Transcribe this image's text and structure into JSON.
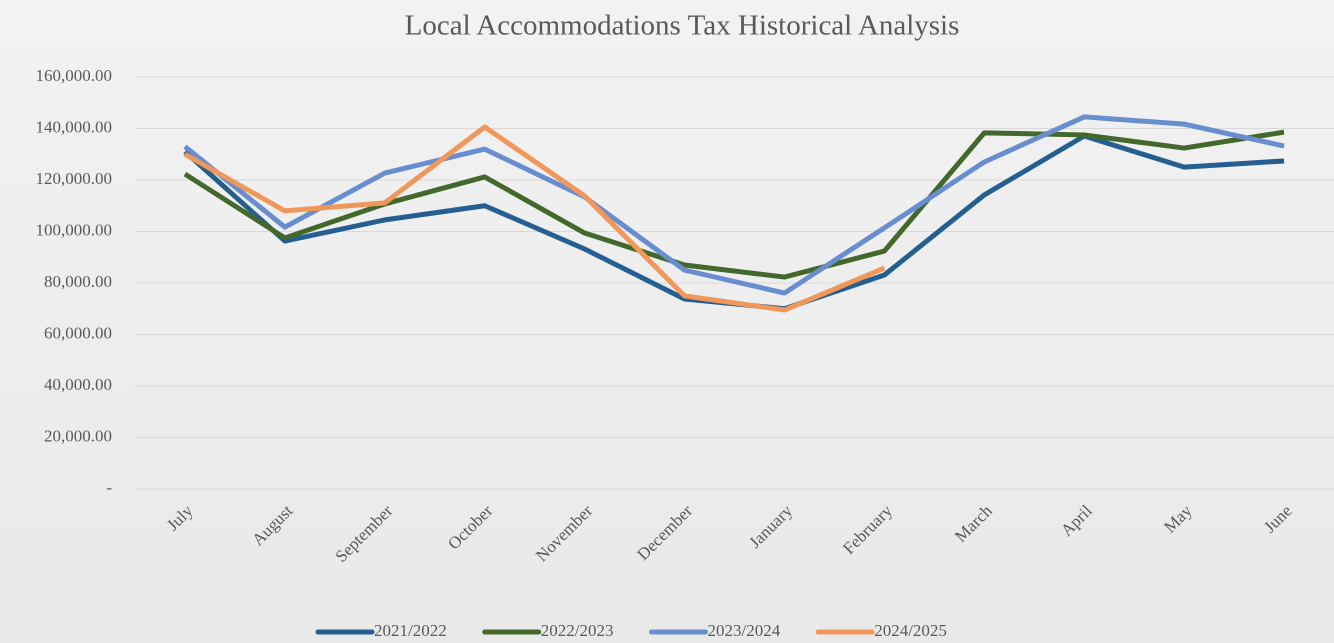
{
  "chart_data": {
    "type": "line",
    "title": "Local Accommodations Tax Historical Analysis",
    "categories": [
      "July",
      "August",
      "September",
      "October",
      "November",
      "December",
      "January",
      "February",
      "March",
      "April",
      "May",
      "June"
    ],
    "series": [
      {
        "name": "2021/2022",
        "color": "#255e91",
        "values": [
          131000,
          96300,
          104500,
          110000,
          93200,
          73800,
          70000,
          83100,
          114200,
          137100,
          125000,
          127400
        ]
      },
      {
        "name": "2022/2023",
        "color": "#43682b",
        "values": [
          122300,
          97500,
          110700,
          121200,
          99400,
          87000,
          82300,
          92400,
          138300,
          137500,
          132400,
          138600
        ]
      },
      {
        "name": "2023/2024",
        "color": "#698ed0",
        "values": [
          133000,
          101700,
          122700,
          132000,
          113400,
          85000,
          76100,
          101400,
          127000,
          144500,
          141700,
          133200
        ]
      },
      {
        "name": "2024/2025",
        "color": "#f0975b",
        "values": [
          130000,
          108000,
          111100,
          140600,
          113800,
          75000,
          69500,
          85800,
          null,
          null,
          null,
          null
        ]
      }
    ],
    "ylim": [
      0,
      160000
    ],
    "yticks": [
      {
        "value": 0,
        "label": "-"
      },
      {
        "value": 20000,
        "label": "20,000.00"
      },
      {
        "value": 40000,
        "label": "40,000.00"
      },
      {
        "value": 60000,
        "label": "60,000.00"
      },
      {
        "value": 80000,
        "label": "80,000.00"
      },
      {
        "value": 100000,
        "label": "100,000.00"
      },
      {
        "value": 120000,
        "label": "120,000.00"
      },
      {
        "value": 140000,
        "label": "140,000.00"
      },
      {
        "value": 160000,
        "label": "160,000.00"
      }
    ],
    "grid": true,
    "legend": "bottom"
  }
}
